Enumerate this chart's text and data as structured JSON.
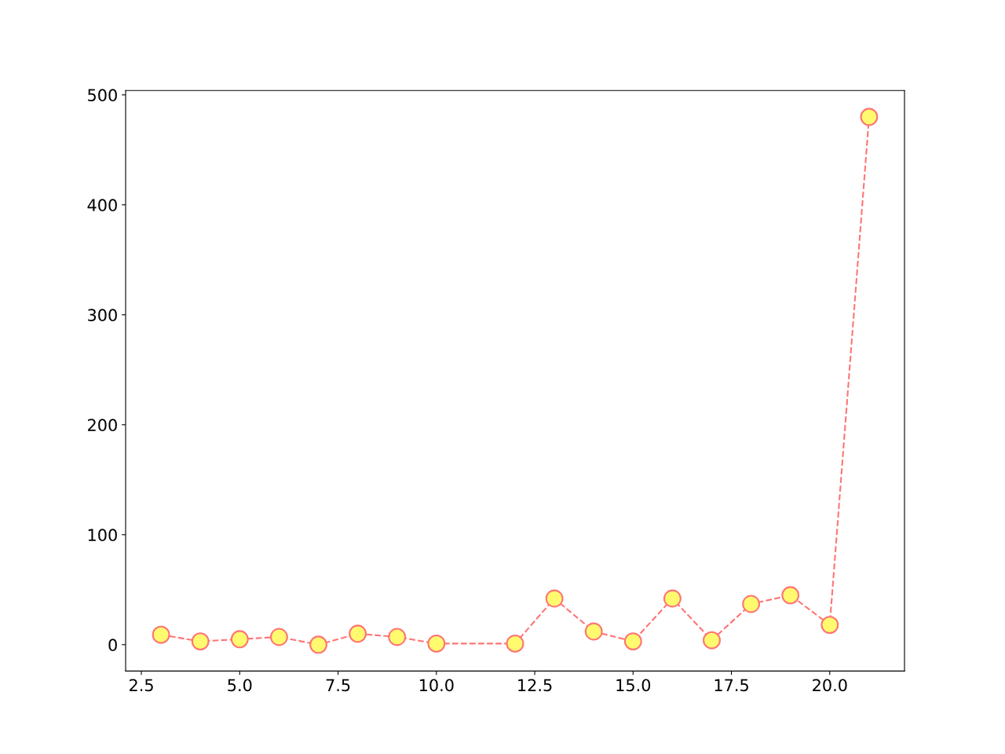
{
  "chart_data": {
    "type": "line",
    "x": [
      3,
      4,
      5,
      6,
      7,
      8,
      9,
      10,
      12,
      13,
      14,
      15,
      16,
      17,
      18,
      19,
      20,
      21
    ],
    "series": [
      {
        "color": "#ff7575",
        "values": [
          9,
          3,
          5,
          7,
          0,
          10,
          7,
          1,
          1,
          42,
          12,
          3,
          42,
          4,
          37,
          45,
          18,
          480
        ]
      }
    ],
    "xlim": [
      2.1,
      21.9
    ],
    "ylim": [
      -24,
      504
    ],
    "xticks": [
      {
        "value": 2.5,
        "label": "2.5"
      },
      {
        "value": 5,
        "label": "5.0"
      },
      {
        "value": 7.5,
        "label": "7.5"
      },
      {
        "value": 10,
        "label": "10.0"
      },
      {
        "value": 12.5,
        "label": "12.5"
      },
      {
        "value": 15,
        "label": "15.0"
      },
      {
        "value": 17.5,
        "label": "17.5"
      },
      {
        "value": 20,
        "label": "20.0"
      }
    ],
    "yticks": [
      0,
      100,
      200,
      300,
      400,
      500
    ],
    "marker": "circle",
    "line_style": "dashed",
    "grid": false,
    "legend": false
  }
}
